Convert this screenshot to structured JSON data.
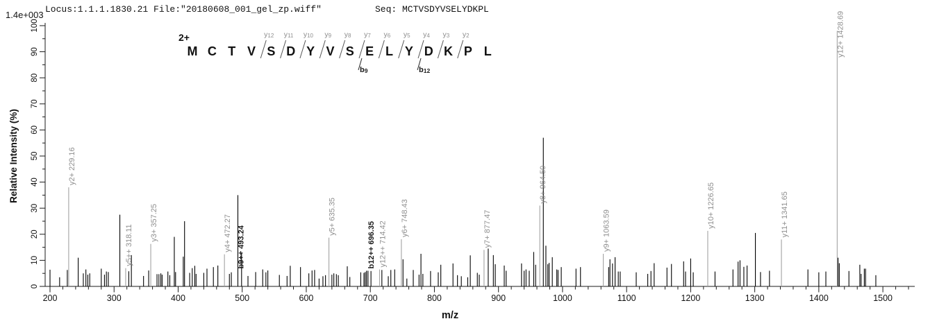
{
  "header": {
    "locus_file": "Locus:1.1.1.1830.21 File:\"20180608_001_gel_zp.wiff\"",
    "seq": "Seq: MCTVSDYVSELYDKPL",
    "max_intensity": "1.4e+003"
  },
  "chart_data": {
    "type": "bar",
    "subtype": "ms2-stick-spectrum",
    "xlabel": "m/z",
    "ylabel": "Relative  Intensity (%)",
    "xlim": [
      192,
      1556
    ],
    "ylim": [
      0,
      100
    ],
    "x_ticks": [
      200,
      300,
      400,
      500,
      600,
      700,
      800,
      900,
      1000,
      1100,
      1200,
      1300,
      1400,
      1500
    ],
    "x_minor_step": 20,
    "y_ticks": [
      0,
      10,
      20,
      30,
      40,
      50,
      60,
      70,
      80,
      90,
      100
    ],
    "y_minor_step": 5,
    "grid": false,
    "legend": false,
    "max_intensity_label": "1.4e+003",
    "precursor_charge": "2+",
    "sequence": [
      "M",
      "C",
      "T",
      "V",
      "S",
      "D",
      "Y",
      "V",
      "S",
      "E",
      "L",
      "Y",
      "D",
      "K",
      "P",
      "L"
    ],
    "y_ion_marks": [
      {
        "ion": "y",
        "num": "12",
        "after_residue": 4
      },
      {
        "ion": "y",
        "num": "11",
        "after_residue": 5
      },
      {
        "ion": "y",
        "num": "10",
        "after_residue": 6
      },
      {
        "ion": "y",
        "num": "9",
        "after_residue": 7
      },
      {
        "ion": "y",
        "num": "8",
        "after_residue": 8
      },
      {
        "ion": "y",
        "num": "7",
        "after_residue": 9
      },
      {
        "ion": "y",
        "num": "6",
        "after_residue": 10
      },
      {
        "ion": "y",
        "num": "5",
        "after_residue": 11
      },
      {
        "ion": "y",
        "num": "4",
        "after_residue": 12
      },
      {
        "ion": "y",
        "num": "3",
        "after_residue": 13
      },
      {
        "ion": "y",
        "num": "2",
        "after_residue": 14
      }
    ],
    "b_ion_marks": [
      {
        "ion": "b",
        "num": "9",
        "after_residue": 9
      },
      {
        "ion": "b",
        "num": "12",
        "after_residue": 12
      }
    ],
    "annotated_peaks": [
      {
        "ion": "y2+",
        "mz": "229.16",
        "intensity": 38,
        "series": "y"
      },
      {
        "ion": "y5++",
        "mz": "318.11",
        "intensity": 7,
        "series": "y"
      },
      {
        "ion": "y3+",
        "mz": "357.25",
        "intensity": 16.3,
        "series": "y"
      },
      {
        "ion": "y4+",
        "mz": "472.27",
        "intensity": 12.3,
        "series": "y"
      },
      {
        "ion": "b9++",
        "mz": "493.24",
        "intensity": 35,
        "series": "b",
        "label_from": 6
      },
      {
        "ion": "y5+",
        "mz": "635.35",
        "intensity": 18.7,
        "series": "y"
      },
      {
        "ion": "b12++",
        "mz": "696.35",
        "intensity": 6,
        "series": "b"
      },
      {
        "ion": "y12++",
        "mz": "714.42",
        "intensity": 6.5,
        "series": "y"
      },
      {
        "ion": "y6+",
        "mz": "748.43",
        "intensity": 18.1,
        "series": "y"
      },
      {
        "ion": "y7+",
        "mz": "877.47",
        "intensity": 14,
        "series": "y"
      },
      {
        "ion": "y8+",
        "mz": "964.50",
        "intensity": 31,
        "series": "y"
      },
      {
        "ion": "y9+",
        "mz": "1063.59",
        "intensity": 12.5,
        "series": "y"
      },
      {
        "ion": "y10+",
        "mz": "1226.65",
        "intensity": 21.3,
        "series": "y"
      },
      {
        "ion": "y11+",
        "mz": "1341.65",
        "intensity": 18,
        "series": "y"
      },
      {
        "ion": "y12+",
        "mz": "1428.69",
        "intensity": 98,
        "series": "y",
        "label_from": 87
      }
    ],
    "peaks": [
      [
        200,
        6.4
      ],
      [
        215,
        3.5
      ],
      [
        227,
        6.3
      ],
      [
        244,
        11
      ],
      [
        252,
        5
      ],
      [
        256,
        6.5
      ],
      [
        259,
        4.5
      ],
      [
        262,
        5
      ],
      [
        280,
        6.8
      ],
      [
        285,
        4.5
      ],
      [
        288,
        5.7
      ],
      [
        291,
        5.5
      ],
      [
        309,
        27.5
      ],
      [
        323,
        5.8
      ],
      [
        327,
        12
      ],
      [
        346,
        4
      ],
      [
        354,
        6.1
      ],
      [
        367,
        4.7
      ],
      [
        370,
        4.7
      ],
      [
        373,
        5
      ],
      [
        375,
        4.5
      ],
      [
        384,
        5.7
      ],
      [
        387,
        4.3
      ],
      [
        394,
        19
      ],
      [
        396,
        5.5
      ],
      [
        408,
        11.4
      ],
      [
        410,
        25
      ],
      [
        418,
        5.2
      ],
      [
        422,
        7
      ],
      [
        426,
        7.9
      ],
      [
        428,
        4.8
      ],
      [
        440,
        5.2
      ],
      [
        445,
        6.8
      ],
      [
        455,
        7.4
      ],
      [
        462,
        8
      ],
      [
        480,
        4.8
      ],
      [
        483,
        5.4
      ],
      [
        499,
        12.7
      ],
      [
        509,
        4
      ],
      [
        521,
        5.5
      ],
      [
        532,
        6.5
      ],
      [
        537,
        5.4
      ],
      [
        540,
        6.1
      ],
      [
        558,
        4.4
      ],
      [
        570,
        4
      ],
      [
        575,
        7.9
      ],
      [
        591,
        7.4
      ],
      [
        604,
        5
      ],
      [
        609,
        6.1
      ],
      [
        613,
        6.3
      ],
      [
        620,
        3
      ],
      [
        626,
        3.9
      ],
      [
        630,
        4.3
      ],
      [
        640,
        4.5
      ],
      [
        643,
        5
      ],
      [
        647,
        4.7
      ],
      [
        650,
        4.3
      ],
      [
        664,
        7.7
      ],
      [
        668,
        3.6
      ],
      [
        685,
        5.4
      ],
      [
        690,
        5.2
      ],
      [
        692,
        5.5
      ],
      [
        694,
        6
      ],
      [
        701,
        5.9
      ],
      [
        718,
        6.3
      ],
      [
        728,
        3.9
      ],
      [
        732,
        6.3
      ],
      [
        738,
        6.5
      ],
      [
        751,
        10.4
      ],
      [
        757,
        3
      ],
      [
        767,
        6.3
      ],
      [
        776,
        4.5
      ],
      [
        779,
        12.5
      ],
      [
        782,
        4.8
      ],
      [
        794,
        5.9
      ],
      [
        806,
        5.4
      ],
      [
        810,
        8.3
      ],
      [
        829,
        8.8
      ],
      [
        836,
        4.3
      ],
      [
        842,
        3.9
      ],
      [
        852,
        3.5
      ],
      [
        856,
        11.9
      ],
      [
        867,
        5.2
      ],
      [
        870,
        4.5
      ],
      [
        884,
        14.5
      ],
      [
        892,
        12
      ],
      [
        895,
        8.5
      ],
      [
        909,
        8
      ],
      [
        912,
        6
      ],
      [
        936,
        8.8
      ],
      [
        940,
        6
      ],
      [
        943,
        6.5
      ],
      [
        948,
        6
      ],
      [
        955,
        13.2
      ],
      [
        958,
        8.3
      ],
      [
        970,
        57
      ],
      [
        974,
        15.6
      ],
      [
        977,
        8.5
      ],
      [
        979,
        9
      ],
      [
        984,
        11.2
      ],
      [
        991,
        6.5
      ],
      [
        993,
        6.3
      ],
      [
        998,
        7.4
      ],
      [
        1021,
        6.8
      ],
      [
        1028,
        7.4
      ],
      [
        1072,
        7.4
      ],
      [
        1074,
        10.4
      ],
      [
        1078,
        8.8
      ],
      [
        1082,
        11.2
      ],
      [
        1087,
        5.7
      ],
      [
        1090,
        5.7
      ],
      [
        1115,
        5.4
      ],
      [
        1133,
        4.8
      ],
      [
        1138,
        5.9
      ],
      [
        1143,
        8.9
      ],
      [
        1163,
        7.2
      ],
      [
        1170,
        8.6
      ],
      [
        1189,
        9.6
      ],
      [
        1192,
        5.7
      ],
      [
        1200,
        10.7
      ],
      [
        1204,
        5.4
      ],
      [
        1238,
        5.7
      ],
      [
        1266,
        6.5
      ],
      [
        1274,
        9.5
      ],
      [
        1277,
        10
      ],
      [
        1283,
        7.5
      ],
      [
        1288,
        8
      ],
      [
        1301,
        20.5
      ],
      [
        1309,
        5.5
      ],
      [
        1323,
        6
      ],
      [
        1383,
        6.5
      ],
      [
        1400,
        5.4
      ],
      [
        1411,
        5.7
      ],
      [
        1430,
        11
      ],
      [
        1432,
        8.9
      ],
      [
        1447,
        5.9
      ],
      [
        1464,
        8.3
      ],
      [
        1466,
        4.8
      ],
      [
        1471,
        6.8
      ],
      [
        1473,
        6.8
      ],
      [
        1489,
        4.3
      ]
    ],
    "colors": {
      "peak": "#000000",
      "matched_peak": "#a2a2a2",
      "y_label": "#8f8f8f",
      "b_label": "#1a1a1a",
      "axis": "#1a1a1a",
      "sequence_letter": "#111111",
      "ion_mark_gray": "#8d8d8d"
    }
  }
}
